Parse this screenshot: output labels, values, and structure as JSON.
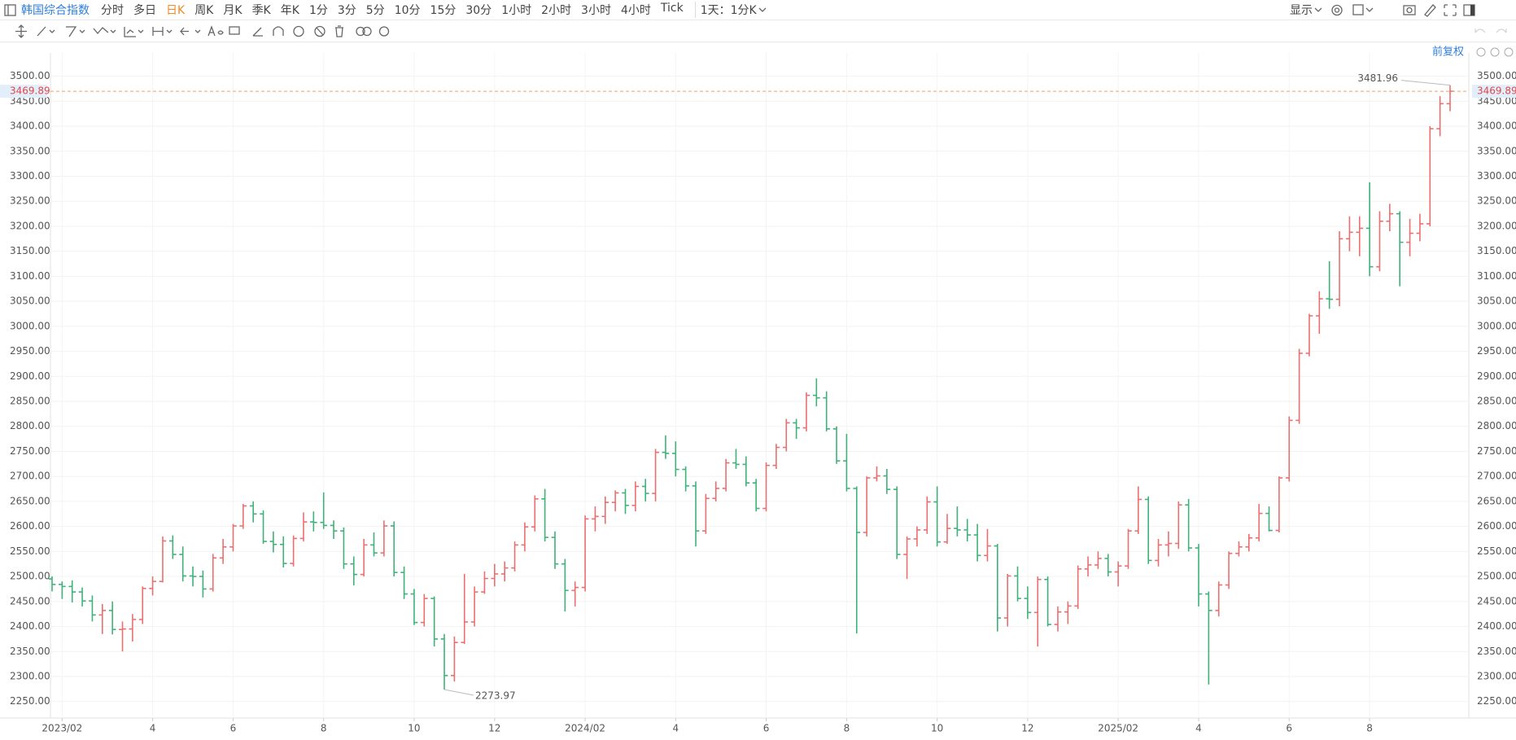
{
  "toolbar": {
    "symbol": "韩国综合指数",
    "periods_before": [
      "分时",
      "多日"
    ],
    "active_period": "日K",
    "periods_after": [
      "周K",
      "月K",
      "季K",
      "年K",
      "1分",
      "3分",
      "5分",
      "10分",
      "15分",
      "30分",
      "1小时",
      "2小时",
      "3小时",
      "4小时",
      "Tick"
    ],
    "interval": "1天：1分K",
    "display": "显示"
  },
  "adjust": "前复权",
  "chart_data": {
    "type": "ohlc",
    "categories": [
      null,
      "2023/02",
      null,
      null,
      null,
      null,
      null,
      null,
      null,
      null,
      "4",
      null,
      null,
      null,
      null,
      null,
      null,
      null,
      "6",
      null,
      null,
      null,
      null,
      null,
      null,
      null,
      null,
      "8",
      null,
      null,
      null,
      null,
      null,
      null,
      null,
      null,
      "10",
      null,
      null,
      null,
      null,
      null,
      null,
      null,
      "12",
      null,
      null,
      null,
      null,
      null,
      null,
      null,
      null,
      "2024/02",
      null,
      null,
      null,
      null,
      null,
      null,
      null,
      null,
      "4",
      null,
      null,
      null,
      null,
      null,
      null,
      null,
      null,
      "6",
      null,
      null,
      null,
      null,
      null,
      null,
      null,
      "8",
      null,
      null,
      null,
      null,
      null,
      null,
      null,
      null,
      "10",
      null,
      null,
      null,
      null,
      null,
      null,
      null,
      null,
      "12",
      null,
      null,
      null,
      null,
      null,
      null,
      null,
      null,
      "2025/02",
      null,
      null,
      null,
      null,
      null,
      null,
      null,
      "4",
      null,
      null,
      null,
      null,
      null,
      null,
      null,
      null,
      "6",
      null,
      null,
      null,
      null,
      null,
      null,
      null,
      "8",
      null,
      null,
      null,
      null,
      null,
      null,
      null,
      null
    ],
    "open": [
      2495,
      2484,
      2480,
      2469,
      2451,
      2423,
      2432,
      2394,
      2395,
      2414,
      2476,
      2490,
      2571,
      2544,
      2501,
      2500,
      2475,
      2537,
      2559,
      2601,
      2641,
      2625,
      2570,
      2564,
      2526,
      2576,
      2609,
      2608,
      2602,
      2591,
      2525,
      2504,
      2563,
      2547,
      2601,
      2508,
      2465,
      2408,
      2456,
      2375,
      2302,
      2368,
      2409,
      2469,
      2496,
      2505,
      2517,
      2563,
      2599,
      2655,
      2578,
      2525,
      2472,
      2478,
      2615,
      2620,
      2648,
      2667,
      2642,
      2680,
      2666,
      2748,
      2746,
      2714,
      2681,
      2591,
      2656,
      2676,
      2727,
      2724,
      2687,
      2636,
      2722,
      2758,
      2807,
      2797,
      2862,
      2857,
      2795,
      2731,
      2676,
      2588,
      2697,
      2701,
      2674,
      2544,
      2575,
      2593,
      2649,
      2569,
      2596,
      2593,
      2583,
      2542,
      2561,
      2417,
      2501,
      2456,
      2428,
      2494,
      2404,
      2429,
      2441,
      2515,
      2523,
      2536,
      2509,
      2521,
      2591,
      2654,
      2532,
      2563,
      2566,
      2643,
      2557,
      2465,
      2432,
      2483,
      2546,
      2559,
      2577,
      2626,
      2592,
      2697,
      2812,
      2946,
      3021,
      3055,
      3054,
      3175,
      3188,
      3196,
      3119,
      3210,
      3225,
      3168,
      3186,
      3205,
      3395,
      3445
    ],
    "high": [
      2500,
      2490,
      2492,
      2478,
      2462,
      2445,
      2450,
      2410,
      2425,
      2480,
      2500,
      2580,
      2582,
      2560,
      2520,
      2512,
      2545,
      2575,
      2605,
      2645,
      2650,
      2632,
      2590,
      2580,
      2582,
      2628,
      2630,
      2668,
      2612,
      2598,
      2540,
      2575,
      2588,
      2612,
      2610,
      2520,
      2475,
      2465,
      2460,
      2385,
      2380,
      2505,
      2480,
      2510,
      2525,
      2530,
      2570,
      2608,
      2662,
      2675,
      2590,
      2535,
      2490,
      2622,
      2640,
      2660,
      2672,
      2675,
      2690,
      2695,
      2755,
      2782,
      2770,
      2720,
      2690,
      2665,
      2690,
      2735,
      2755,
      2740,
      2695,
      2728,
      2765,
      2815,
      2815,
      2868,
      2896,
      2870,
      2800,
      2785,
      2680,
      2700,
      2720,
      2715,
      2680,
      2580,
      2600,
      2660,
      2680,
      2625,
      2640,
      2615,
      2605,
      2595,
      2565,
      2505,
      2520,
      2480,
      2500,
      2500,
      2440,
      2450,
      2522,
      2540,
      2550,
      2545,
      2530,
      2595,
      2680,
      2660,
      2575,
      2590,
      2650,
      2655,
      2565,
      2470,
      2490,
      2550,
      2570,
      2585,
      2645,
      2640,
      2700,
      2820,
      2955,
      3025,
      3070,
      3130,
      3190,
      3220,
      3220,
      3288,
      3230,
      3245,
      3230,
      3215,
      3225,
      3400,
      3460,
      3481.96
    ],
    "low": [
      2470,
      2455,
      2448,
      2440,
      2410,
      2385,
      2384,
      2350,
      2370,
      2405,
      2462,
      2488,
      2535,
      2490,
      2480,
      2458,
      2470,
      2525,
      2550,
      2595,
      2608,
      2565,
      2548,
      2518,
      2520,
      2570,
      2590,
      2595,
      2575,
      2515,
      2482,
      2500,
      2540,
      2540,
      2500,
      2455,
      2403,
      2400,
      2360,
      2273.97,
      2290,
      2365,
      2400,
      2465,
      2480,
      2490,
      2510,
      2550,
      2590,
      2570,
      2515,
      2430,
      2440,
      2470,
      2590,
      2605,
      2630,
      2625,
      2630,
      2650,
      2650,
      2735,
      2700,
      2670,
      2560,
      2585,
      2650,
      2670,
      2715,
      2680,
      2630,
      2630,
      2715,
      2750,
      2775,
      2790,
      2840,
      2790,
      2725,
      2670,
      2386,
      2580,
      2690,
      2665,
      2535,
      2495,
      2560,
      2585,
      2560,
      2565,
      2580,
      2570,
      2530,
      2530,
      2390,
      2400,
      2450,
      2415,
      2360,
      2400,
      2390,
      2405,
      2435,
      2500,
      2515,
      2500,
      2480,
      2515,
      2585,
      2525,
      2520,
      2540,
      2555,
      2550,
      2440,
      2284,
      2420,
      2475,
      2540,
      2550,
      2570,
      2590,
      2588,
      2690,
      2805,
      2940,
      2985,
      3035,
      3040,
      3150,
      3140,
      3100,
      3110,
      3190,
      3080,
      3140,
      3170,
      3200,
      3380,
      3430
    ],
    "close": [
      2484,
      2480,
      2469,
      2451,
      2423,
      2432,
      2394,
      2395,
      2414,
      2476,
      2490,
      2571,
      2544,
      2501,
      2500,
      2475,
      2537,
      2559,
      2601,
      2641,
      2625,
      2570,
      2564,
      2526,
      2576,
      2609,
      2608,
      2602,
      2591,
      2525,
      2504,
      2563,
      2547,
      2601,
      2508,
      2465,
      2408,
      2456,
      2375,
      2302,
      2368,
      2409,
      2469,
      2496,
      2505,
      2517,
      2563,
      2599,
      2655,
      2578,
      2525,
      2472,
      2478,
      2615,
      2620,
      2648,
      2667,
      2642,
      2680,
      2666,
      2748,
      2746,
      2714,
      2681,
      2591,
      2656,
      2676,
      2727,
      2724,
      2687,
      2636,
      2722,
      2758,
      2807,
      2797,
      2862,
      2857,
      2795,
      2731,
      2676,
      2588,
      2697,
      2701,
      2674,
      2544,
      2575,
      2593,
      2649,
      2569,
      2596,
      2593,
      2583,
      2542,
      2561,
      2417,
      2501,
      2456,
      2428,
      2494,
      2404,
      2429,
      2441,
      2515,
      2523,
      2536,
      2509,
      2521,
      2591,
      2654,
      2532,
      2563,
      2566,
      2643,
      2557,
      2465,
      2432,
      2483,
      2546,
      2559,
      2577,
      2626,
      2592,
      2697,
      2812,
      2946,
      3021,
      3055,
      3054,
      3175,
      3188,
      3196,
      3119,
      3210,
      3225,
      3168,
      3186,
      3205,
      3395,
      3445,
      3469.89
    ],
    "up_color": "#ec6f6f",
    "down_color": "#3fb27a",
    "last_price_color": "#f0a060",
    "ylim": [
      2217,
      3527
    ],
    "yticks": [
      {
        "value": 2250,
        "label": "2250.00"
      },
      {
        "value": 2300,
        "label": "2300.00"
      },
      {
        "value": 2350,
        "label": "2350.00"
      },
      {
        "value": 2400,
        "label": "2400.00"
      },
      {
        "value": 2450,
        "label": "2450.00"
      },
      {
        "value": 2500,
        "label": "2500.00"
      },
      {
        "value": 2550,
        "label": "2550.00"
      },
      {
        "value": 2600,
        "label": "2600.00"
      },
      {
        "value": 2650,
        "label": "2650.00"
      },
      {
        "value": 2700,
        "label": "2700.00"
      },
      {
        "value": 2750,
        "label": "2750.00"
      },
      {
        "value": 2800,
        "label": "2800.00"
      },
      {
        "value": 2850,
        "label": "2850.00"
      },
      {
        "value": 2900,
        "label": "2900.00"
      },
      {
        "value": 2950,
        "label": "2950.00"
      },
      {
        "value": 3000,
        "label": "3000.00"
      },
      {
        "value": 3050,
        "label": "3050.00"
      },
      {
        "value": 3100,
        "label": "3100.00"
      },
      {
        "value": 3150,
        "label": "3150.00"
      },
      {
        "value": 3200,
        "label": "3200.00"
      },
      {
        "value": 3250,
        "label": "3250.00"
      },
      {
        "value": 3300,
        "label": "3300.00"
      },
      {
        "value": 3350,
        "label": "3350.00"
      },
      {
        "value": 3400,
        "label": "3400.00"
      },
      {
        "value": 3450,
        "label": "3450.00"
      },
      {
        "value": 3500,
        "label": "3500.00"
      }
    ],
    "grid": true
  }
}
